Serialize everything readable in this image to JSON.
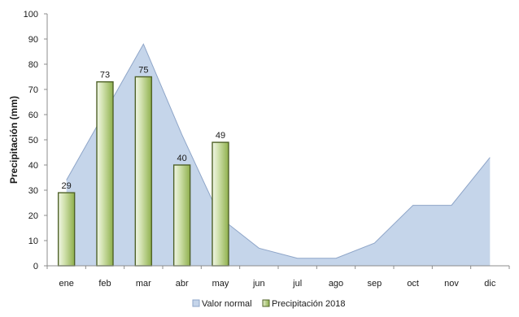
{
  "chart_data": {
    "type": "bar",
    "categories": [
      "ene",
      "feb",
      "mar",
      "abr",
      "may",
      "jun",
      "jul",
      "ago",
      "sep",
      "oct",
      "nov",
      "dic"
    ],
    "series": [
      {
        "name": "Valor normal",
        "type": "area",
        "values": [
          34,
          61,
          88,
          52,
          19,
          7,
          3,
          3,
          9,
          24,
          24,
          43
        ],
        "color": "#c5d5ea",
        "stroke": "#8ea5c8"
      },
      {
        "name": "Precipitación 2018",
        "type": "bar",
        "values": [
          29,
          73,
          75,
          40,
          49,
          null,
          null,
          null,
          null,
          null,
          null,
          null
        ],
        "data_labels": [
          "29",
          "73",
          "75",
          "40",
          "49"
        ],
        "color": "#9bbb59",
        "stroke": "#4f6228"
      }
    ],
    "xlabel": "",
    "ylabel": "Precipitación (mm)",
    "ylim": [
      0,
      100
    ],
    "yticks": [
      0,
      10,
      20,
      30,
      40,
      50,
      60,
      70,
      80,
      90,
      100
    ],
    "grid": false,
    "legend_position": "bottom"
  }
}
